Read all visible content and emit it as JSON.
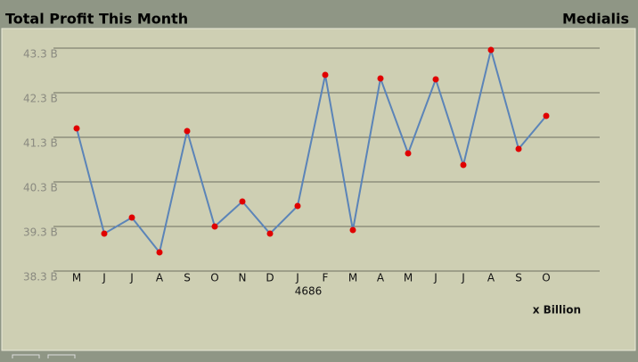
{
  "header": {
    "title": "Total Profit This Month",
    "brand": "Medialis"
  },
  "chart_data": {
    "type": "line",
    "categories": [
      "M",
      "J",
      "J",
      "A",
      "S",
      "O",
      "N",
      "D",
      "J",
      "F",
      "M",
      "A",
      "M",
      "J",
      "J",
      "A",
      "S",
      "O"
    ],
    "series": [
      {
        "color": "#5b84b8",
        "marker_color": "#e00000",
        "values": [
          41.5,
          39.14,
          39.5,
          38.72,
          41.44,
          39.3,
          39.86,
          39.14,
          39.76,
          42.7,
          39.22,
          42.62,
          40.94,
          42.6,
          40.68,
          43.26,
          41.04,
          41.78
        ]
      }
    ],
    "ylim": [
      38.3,
      43.3
    ],
    "yticks": [
      {
        "value": 38.3,
        "label": "38.3 B"
      },
      {
        "value": 39.3,
        "label": "39.3 B"
      },
      {
        "value": 40.3,
        "label": "40.3 B"
      },
      {
        "value": 41.3,
        "label": "41.3 B"
      },
      {
        "value": 42.3,
        "label": "42.3 B"
      },
      {
        "value": 43.3,
        "label": "43.3 B"
      }
    ],
    "grid": true,
    "year_label": "4686",
    "unit_label": "x Billion"
  }
}
